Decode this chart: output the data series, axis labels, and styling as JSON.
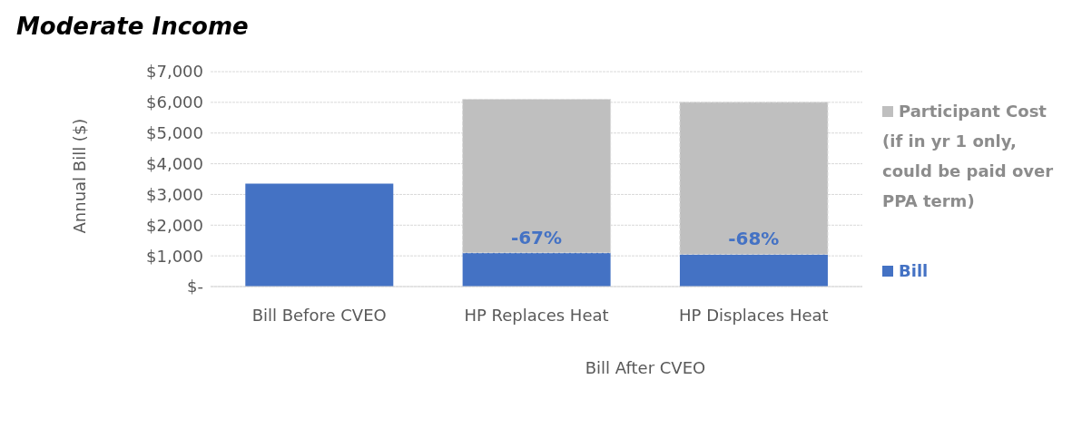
{
  "chart_data": {
    "type": "bar",
    "title": "Moderate Income",
    "ylabel": "Annual Bill ($)",
    "categories": [
      "Bill Before CVEO",
      "HP Replaces Heat",
      "HP Displaces Heat"
    ],
    "stacked": true,
    "series": [
      {
        "name": "Bill",
        "color": "#4472c4",
        "values": [
          3350,
          1100,
          1050
        ]
      },
      {
        "name": "Participant Cost (if in yr 1 only, could be paid over PPA term)",
        "color": "#bfbfbf",
        "values": [
          null,
          5000,
          4950
        ]
      }
    ],
    "ylim": [
      0,
      7000
    ],
    "yticks": [
      {
        "value": 0,
        "label": "$-"
      },
      {
        "value": 1000,
        "label": "$1,000"
      },
      {
        "value": 2000,
        "label": "$2,000"
      },
      {
        "value": 3000,
        "label": "$3,000"
      },
      {
        "value": 4000,
        "label": "$4,000"
      },
      {
        "value": 5000,
        "label": "$5,000"
      },
      {
        "value": 6000,
        "label": "$6,000"
      },
      {
        "value": 7000,
        "label": "$7,000"
      }
    ],
    "grid": "y",
    "legend": "right",
    "annotations": [
      "Bill After CVEO",
      "-67%",
      "-68%"
    ]
  }
}
